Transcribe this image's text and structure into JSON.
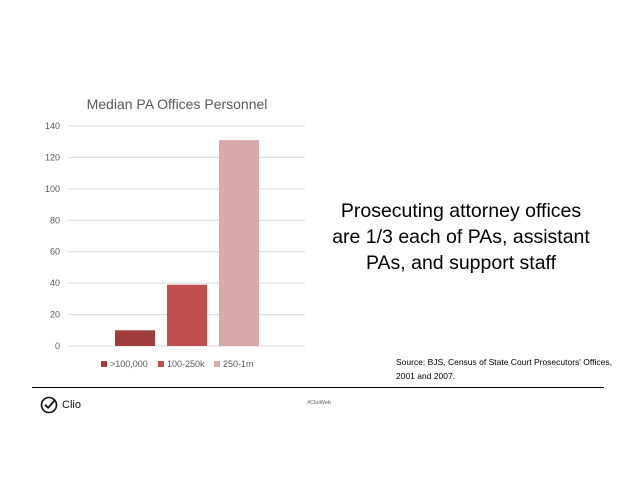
{
  "chart_data": {
    "type": "bar",
    "title": "Median PA Offices Personnel",
    "xlabel": "",
    "ylabel": "",
    "ylim": [
      0,
      140
    ],
    "yticks": [
      0,
      20,
      40,
      60,
      80,
      100,
      120,
      140
    ],
    "grid": true,
    "legend_position": "bottom",
    "series": [
      {
        "name": ">100,000",
        "value": 10,
        "color": "#a03c3c"
      },
      {
        "name": "100-250k",
        "value": 39,
        "color": "#c0504d"
      },
      {
        "name": "250-1m",
        "value": 131,
        "color": "#d9a9aa"
      }
    ]
  },
  "headline": "Prosecuting attorney offices are 1/3 each of PAs, assistant PAs, and support staff",
  "source": "Source: BJS, Census of State Court Prosecutors' Offices, 2001 and 2007.",
  "footer": {
    "logo_text": "Clio",
    "logo_icon": "clio-check-icon",
    "hashtag": "#ClioWeb"
  }
}
